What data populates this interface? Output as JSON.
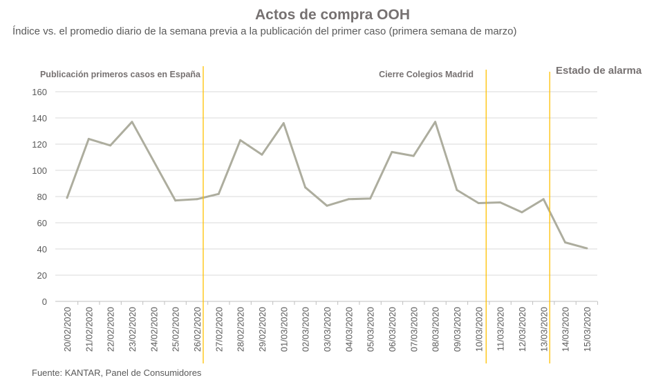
{
  "chart_data": {
    "type": "line",
    "title": "Actos de compra OOH",
    "subtitle": "Índice vs. el promedio diario de la semana previa a la publicación del primer caso (primera semana de marzo)",
    "source": "Fuente: KANTAR, Panel de Consumidores",
    "categories": [
      "20/02/2020",
      "21/02/2020",
      "22/02/2020",
      "23/02/2020",
      "24/02/2020",
      "25/02/2020",
      "26/02/2020",
      "27/02/2020",
      "28/02/2020",
      "29/02/2020",
      "01/03/2020",
      "02/03/2020",
      "03/03/2020",
      "04/03/2020",
      "05/03/2020",
      "06/03/2020",
      "07/03/2020",
      "08/03/2020",
      "09/03/2020",
      "10/03/2020",
      "11/03/2020",
      "12/03/2020",
      "13/03/2020",
      "14/03/2020",
      "15/03/2020"
    ],
    "values": [
      79,
      124,
      119,
      137,
      107,
      77,
      78,
      82,
      123,
      112,
      136,
      87,
      73,
      78,
      78.5,
      114,
      111,
      137,
      85,
      75,
      75.5,
      68,
      78,
      45,
      40.5
    ],
    "ylim": [
      0,
      160
    ],
    "yticks": [
      0,
      20,
      40,
      60,
      80,
      100,
      120,
      140,
      160
    ],
    "grid": true,
    "line_color": "#adad9e",
    "annotation_color": "#ffc000",
    "annotations": [
      {
        "label": "Publicación primeros casos en España",
        "after": "26/02/2020"
      },
      {
        "label": "Cierre Colegios Madrid",
        "after": "10/03/2020"
      },
      {
        "label": "Estado de alarma",
        "after": "13/03/2020"
      }
    ]
  }
}
